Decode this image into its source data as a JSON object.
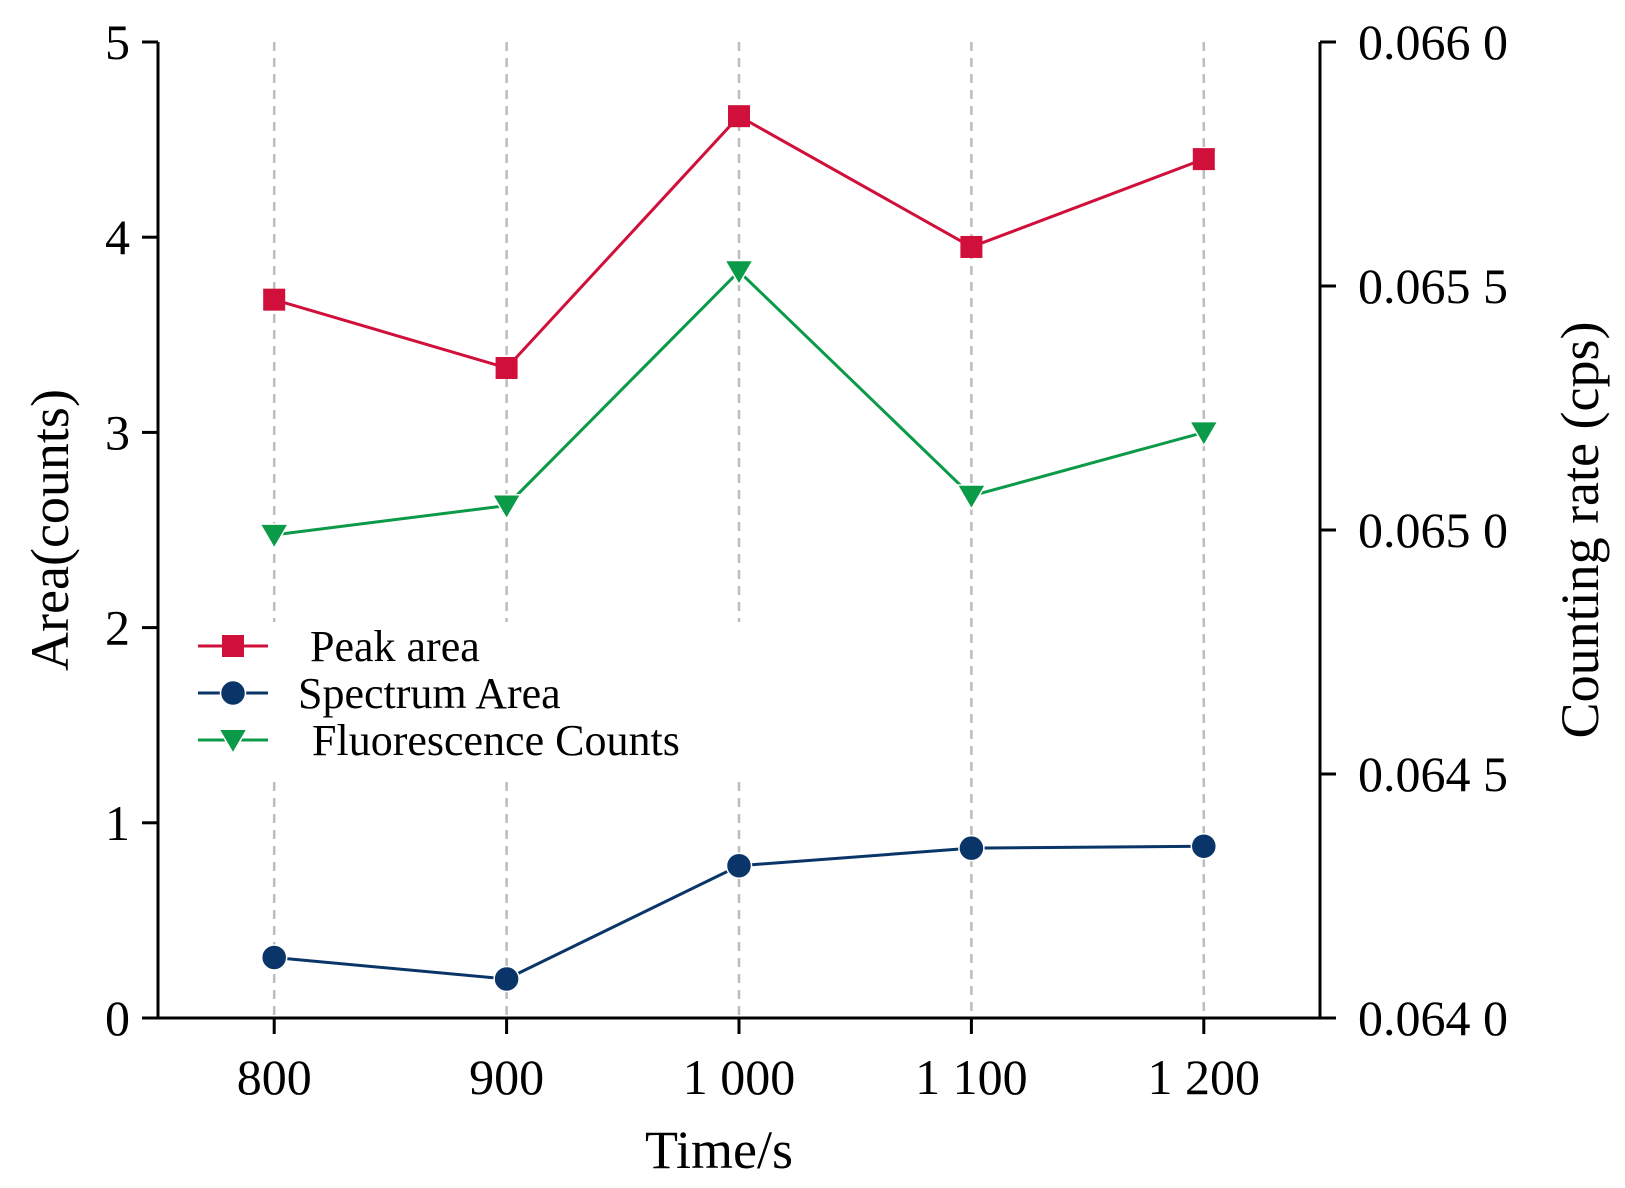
{
  "chart_data": {
    "type": "line",
    "x": [
      800,
      900,
      1000,
      1100,
      1200
    ],
    "x_tick_labels": [
      "800",
      "900",
      "1 000",
      "1 100",
      "1 200"
    ],
    "xlabel": "Time/s",
    "xlim": [
      750,
      1250
    ],
    "ylabel": "Area(counts)",
    "ylim": [
      0,
      5
    ],
    "y_ticks": [
      0,
      1,
      2,
      3,
      4,
      5
    ],
    "y_tick_labels": [
      "0",
      "1",
      "2",
      "3",
      "4",
      "5"
    ],
    "y2label": "Counting rate (cps)",
    "y2lim": [
      0.064,
      0.066
    ],
    "y2_ticks": [
      0.064,
      0.0645,
      0.065,
      0.0655,
      0.066
    ],
    "y2_tick_labels": [
      "0.064 0",
      "0.064 5",
      "0.065 0",
      "0.065 5",
      "0.066 0"
    ],
    "grid": "x-only dashed vertical lines",
    "legend_position": "center-left",
    "series": [
      {
        "name": "Peak area",
        "axis": "left",
        "marker": "square",
        "color": "#d0103a",
        "values": [
          3.68,
          3.33,
          4.62,
          3.95,
          4.4
        ]
      },
      {
        "name": "Spectrum Area",
        "axis": "left",
        "marker": "circle",
        "color": "#0a3569",
        "values": [
          0.31,
          0.2,
          0.78,
          0.87,
          0.88
        ]
      },
      {
        "name": "Fluorescence Counts",
        "axis": "right",
        "marker": "triangle-down",
        "color": "#0b9a47",
        "values": [
          0.06499,
          0.06505,
          0.06553,
          0.06507,
          0.0652
        ]
      }
    ]
  }
}
